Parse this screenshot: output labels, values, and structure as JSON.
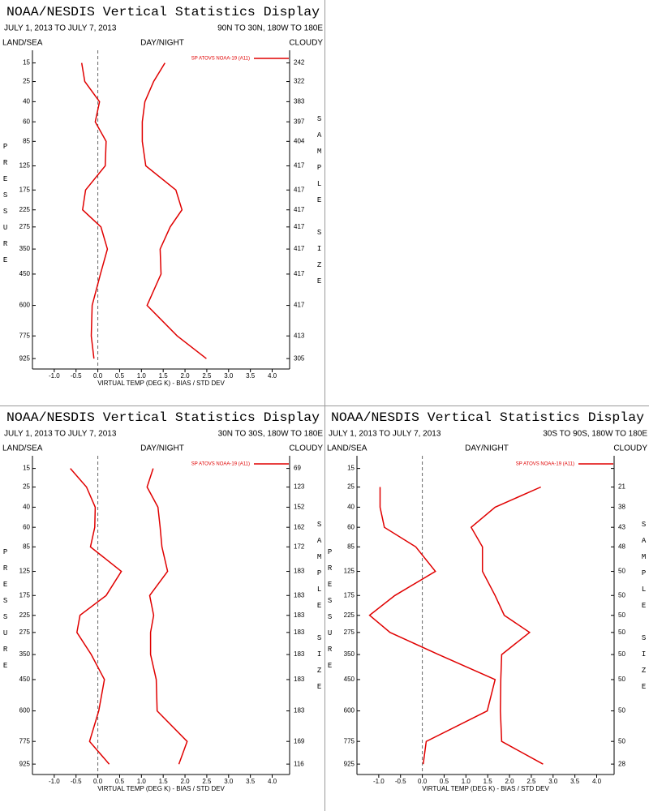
{
  "chart_data": [
    {
      "type": "line",
      "title": "NOAA/NESDIS Vertical Statistics Display",
      "date_range": "JULY 1, 2013 TO JULY 7, 2013",
      "region": "90N TO 30N, 180W TO 180E",
      "filters": [
        "LAND/SEA",
        "DAY/NIGHT",
        "CLOUDY"
      ],
      "xlabel": "VIRTUAL TEMP (DEG K) - BIAS / STD DEV",
      "ylabel": "PRESSURE",
      "y2label": "SAMPLE SIZE",
      "y": [
        15,
        25,
        40,
        60,
        85,
        125,
        175,
        225,
        275,
        350,
        450,
        600,
        775,
        925
      ],
      "sample_size": [
        242,
        322,
        383,
        397,
        404,
        417,
        417,
        417,
        417,
        417,
        417,
        417,
        413,
        305
      ],
      "series": [
        {
          "name": "SP ATOVS NOAA-19 (A11)",
          "color": "#e00000",
          "bias": [
            -0.37,
            -0.3,
            0.04,
            -0.06,
            0.19,
            0.17,
            -0.28,
            -0.35,
            0.07,
            0.22,
            0.06,
            -0.13,
            -0.15,
            -0.09
          ],
          "std_dev": [
            1.54,
            1.28,
            1.08,
            1.02,
            1.02,
            1.1,
            1.79,
            1.93,
            1.66,
            1.43,
            1.45,
            1.13,
            1.82,
            2.49
          ]
        }
      ],
      "xlim": [
        -1.5,
        4.4
      ],
      "xticks": [
        {
          "value": -1,
          "label": "-1.0"
        },
        -0.5,
        {
          "value": 0,
          "label": "0.0"
        },
        0.5,
        {
          "value": 1,
          "label": "1.0"
        },
        1.5,
        {
          "value": 2,
          "label": "2.0"
        },
        2.5,
        {
          "value": 3,
          "label": "3.0"
        },
        3.5,
        {
          "value": 4,
          "label": "4.0"
        }
      ],
      "ylim": [
        1000,
        10
      ],
      "yscale": "cbrt",
      "yticks": [
        15,
        25,
        40,
        60,
        85,
        125,
        175,
        225,
        275,
        350,
        450,
        600,
        775,
        925
      ]
    },
    {
      "type": "line",
      "title": "NOAA/NESDIS Vertical Statistics Display",
      "date_range": "JULY 1, 2013 TO JULY 7, 2013",
      "region": "30N TO 30S, 180W TO 180E",
      "filters": [
        "LAND/SEA",
        "DAY/NIGHT",
        "CLOUDY"
      ],
      "xlabel": "VIRTUAL TEMP (DEG K) - BIAS / STD DEV",
      "ylabel": "PRESSURE",
      "y2label": "SAMPLE SIZE",
      "y": [
        15,
        25,
        40,
        60,
        85,
        125,
        175,
        225,
        275,
        350,
        450,
        600,
        775,
        925
      ],
      "sample_size": [
        69,
        123,
        152,
        162,
        172,
        183,
        183,
        183,
        183,
        183,
        183,
        183,
        169,
        116
      ],
      "series": [
        {
          "name": "SP ATOVS NOAA-19 (A11)",
          "color": "#e00000",
          "bias": [
            -0.63,
            -0.26,
            -0.06,
            -0.07,
            -0.17,
            0.54,
            0.19,
            -0.41,
            -0.48,
            -0.15,
            0.15,
            0.02,
            -0.19,
            0.26
          ],
          "std_dev": [
            1.27,
            1.13,
            1.38,
            1.43,
            1.47,
            1.6,
            1.19,
            1.28,
            1.21,
            1.21,
            1.34,
            1.36,
            2.05,
            1.86
          ]
        }
      ],
      "xlim": [
        -1.5,
        4.4
      ],
      "xticks": [
        {
          "value": -1,
          "label": "-1.0"
        },
        -0.5,
        {
          "value": 0,
          "label": "0.0"
        },
        0.5,
        {
          "value": 1,
          "label": "1.0"
        },
        1.5,
        {
          "value": 2,
          "label": "2.0"
        },
        2.5,
        {
          "value": 3,
          "label": "3.0"
        },
        3.5,
        {
          "value": 4,
          "label": "4.0"
        }
      ],
      "ylim": [
        1000,
        10
      ],
      "yscale": "cbrt",
      "yticks": [
        15,
        25,
        40,
        60,
        85,
        125,
        175,
        225,
        275,
        350,
        450,
        600,
        775,
        925
      ]
    },
    {
      "type": "line",
      "title": "NOAA/NESDIS Vertical Statistics Display",
      "date_range": "JULY 1, 2013 TO JULY 7, 2013",
      "region": "30S TO 90S, 180W TO 180E",
      "filters": [
        "LAND/SEA",
        "DAY/NIGHT",
        "CLOUDY"
      ],
      "xlabel": "VIRTUAL TEMP (DEG K) - BIAS / STD DEV",
      "ylabel": "PRESSURE",
      "y2label": "SAMPLE SIZE",
      "y": [
        15,
        25,
        40,
        60,
        85,
        125,
        175,
        225,
        275,
        350,
        450,
        600,
        775,
        925
      ],
      "sample_size": [
        null,
        21,
        38,
        43,
        48,
        50,
        50,
        50,
        50,
        50,
        50,
        50,
        50,
        28
      ],
      "series": [
        {
          "name": "SP ATOVS NOAA-19 (A11)",
          "color": "#e00000",
          "bias": [
            null,
            -0.97,
            -0.97,
            -0.87,
            -0.15,
            0.3,
            -0.63,
            -1.21,
            -0.74,
            0.37,
            1.67,
            1.49,
            0.09,
            0.02
          ],
          "std_dev": [
            null,
            2.72,
            1.67,
            1.12,
            1.38,
            1.38,
            1.67,
            1.88,
            2.46,
            1.82,
            1.8,
            1.79,
            1.82,
            2.77
          ]
        }
      ],
      "xlim": [
        -1.5,
        4.4
      ],
      "xticks": [
        {
          "value": -1,
          "label": "-1.0"
        },
        -0.5,
        {
          "value": 0,
          "label": "0.0"
        },
        0.5,
        {
          "value": 1,
          "label": "1.0"
        },
        1.5,
        {
          "value": 2,
          "label": "2.0"
        },
        2.5,
        {
          "value": 3,
          "label": "3.0"
        },
        3.5,
        {
          "value": 4,
          "label": "4.0"
        }
      ],
      "ylim": [
        1000,
        10
      ],
      "yscale": "cbrt",
      "yticks": [
        15,
        25,
        40,
        60,
        85,
        125,
        175,
        225,
        275,
        350,
        450,
        600,
        775,
        925
      ]
    }
  ]
}
